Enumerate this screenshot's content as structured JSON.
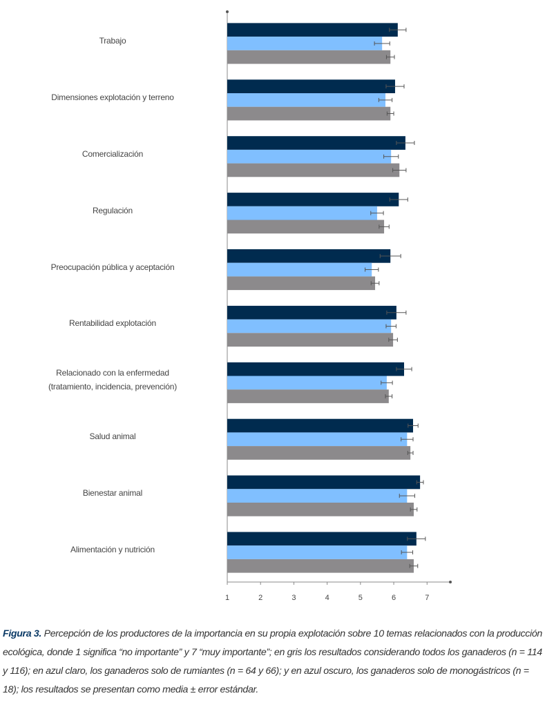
{
  "chart_data": {
    "type": "barh",
    "categories": [
      "Trabajo",
      "Dimensiones explotación y terreno",
      "Comercialización",
      "Regulación",
      "Preocupación pública y aceptación",
      "Rentabilidad explotación",
      "Relacionado con la enfermedad\n(tratamiento, incidencia, prevención)",
      "Salud animal",
      "Bienestar animal",
      "Alimentación y nutrición"
    ],
    "series": [
      {
        "color": "#002b4f",
        "values": [
          6.12,
          6.04,
          6.35,
          6.15,
          5.9,
          6.08,
          6.31,
          6.58,
          6.79,
          6.68
        ],
        "errors": [
          0.25,
          0.27,
          0.27,
          0.27,
          0.31,
          0.29,
          0.23,
          0.15,
          0.1,
          0.27
        ]
      },
      {
        "color": "#80bfff",
        "values": [
          5.65,
          5.75,
          5.92,
          5.5,
          5.34,
          5.92,
          5.79,
          6.4,
          6.4,
          6.4
        ],
        "errors": [
          0.23,
          0.2,
          0.22,
          0.19,
          0.2,
          0.15,
          0.17,
          0.18,
          0.23,
          0.17
        ]
      },
      {
        "color": "#8c8a8c",
        "values": [
          5.9,
          5.9,
          6.17,
          5.71,
          5.44,
          5.98,
          5.85,
          6.5,
          6.6,
          6.6
        ],
        "errors": [
          0.12,
          0.1,
          0.2,
          0.15,
          0.12,
          0.13,
          0.1,
          0.08,
          0.1,
          0.12
        ]
      }
    ],
    "xlim": [
      1,
      7.7
    ],
    "xticks": [
      1,
      2,
      3,
      4,
      5,
      6,
      7
    ],
    "grid": false
  },
  "caption": {
    "label": "Figura 3.",
    "text": "Percepción de los productores de la importancia en su propia explotación sobre 10 temas relacionados con la producción ecológica, donde 1 significa “no importante” y 7 “muy importante”; en gris los resultados considerando todos los ganaderos (n = 114 y 116); en azul claro, los ganaderos solo de rumiantes (n = 64 y 66); y en azul oscuro, los ganaderos solo de monogástricos (n = 18); los resultados se presentan como media ± error estándar."
  }
}
